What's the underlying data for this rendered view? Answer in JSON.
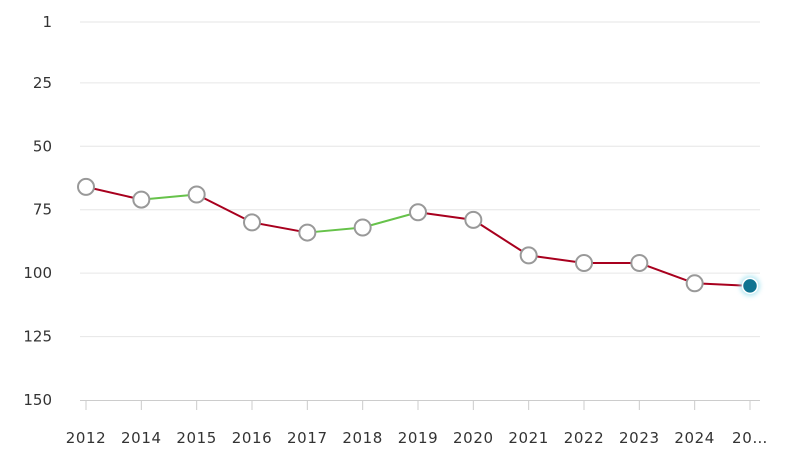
{
  "chart_data": {
    "type": "line",
    "title": "",
    "xlabel": "",
    "ylabel": "",
    "y_reversed": true,
    "ylim": [
      1,
      150
    ],
    "yticks": [
      "1",
      "25",
      "50",
      "75",
      "100",
      "125",
      "150"
    ],
    "categories": [
      "2012",
      "2014",
      "2015",
      "2016",
      "2017",
      "2018",
      "2019",
      "2020",
      "2021",
      "2022",
      "2023",
      "2024",
      "20…"
    ],
    "series": [
      {
        "values": [
          66,
          71,
          69,
          80,
          84,
          82,
          76,
          79,
          93,
          96,
          96,
          104,
          105
        ]
      }
    ],
    "colors": {
      "up": "#66c24a",
      "down": "#a8001e",
      "marker_fill": "#ffffff",
      "marker_stroke": "#999999",
      "current_marker": "#0f7391",
      "current_glow": "#9fe0ee"
    },
    "grid": true,
    "legend": "none"
  }
}
